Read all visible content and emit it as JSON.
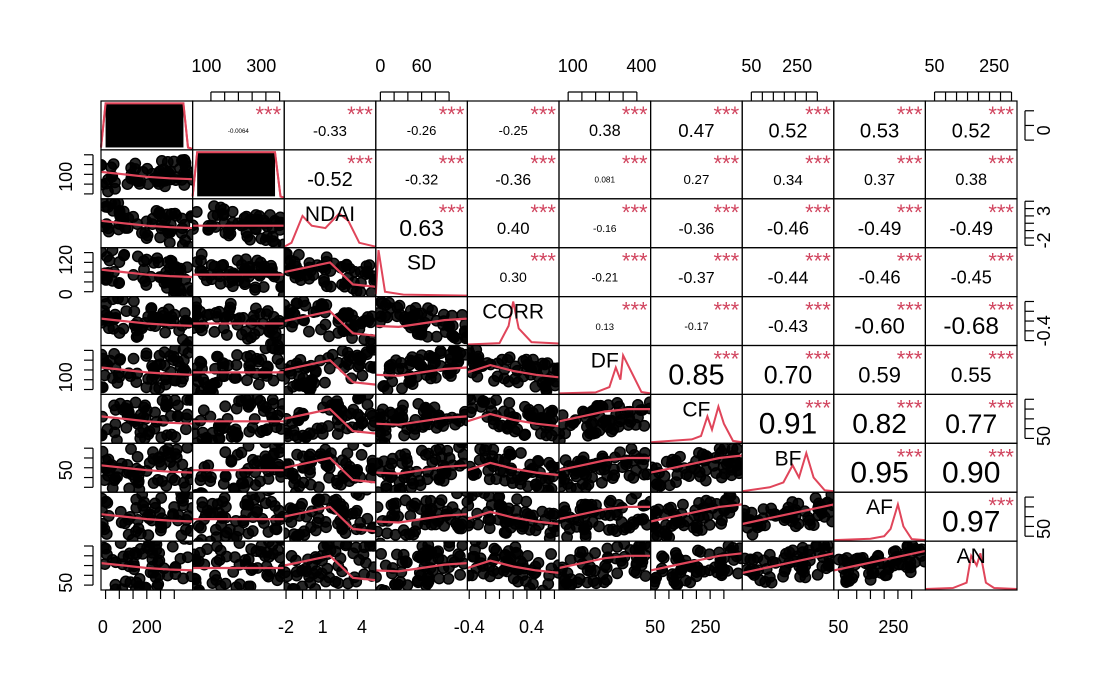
{
  "chart_data": {
    "type": "scatter-matrix",
    "variables": [
      "",
      "",
      "NDAI",
      "SD",
      "CORR",
      "DF",
      "CF",
      "BF",
      "AF",
      "AN"
    ],
    "significance_marker": "***",
    "correlations": [
      {
        "row": 0,
        "col": 1,
        "label": "-0.0064"
      },
      {
        "row": 0,
        "col": 2,
        "label": "-0.33"
      },
      {
        "row": 0,
        "col": 3,
        "label": "-0.26"
      },
      {
        "row": 0,
        "col": 4,
        "label": "-0.25"
      },
      {
        "row": 0,
        "col": 5,
        "label": "0.38"
      },
      {
        "row": 0,
        "col": 6,
        "label": "0.47"
      },
      {
        "row": 0,
        "col": 7,
        "label": "0.52"
      },
      {
        "row": 0,
        "col": 8,
        "label": "0.53"
      },
      {
        "row": 0,
        "col": 9,
        "label": "0.52"
      },
      {
        "row": 1,
        "col": 2,
        "label": "-0.52"
      },
      {
        "row": 1,
        "col": 3,
        "label": "-0.32"
      },
      {
        "row": 1,
        "col": 4,
        "label": "-0.36"
      },
      {
        "row": 1,
        "col": 5,
        "label": "0.081"
      },
      {
        "row": 1,
        "col": 6,
        "label": "0.27"
      },
      {
        "row": 1,
        "col": 7,
        "label": "0.34"
      },
      {
        "row": 1,
        "col": 8,
        "label": "0.37"
      },
      {
        "row": 1,
        "col": 9,
        "label": "0.38"
      },
      {
        "row": 2,
        "col": 3,
        "label": "0.63"
      },
      {
        "row": 2,
        "col": 4,
        "label": "0.40"
      },
      {
        "row": 2,
        "col": 5,
        "label": "-0.16"
      },
      {
        "row": 2,
        "col": 6,
        "label": "-0.36"
      },
      {
        "row": 2,
        "col": 7,
        "label": "-0.46"
      },
      {
        "row": 2,
        "col": 8,
        "label": "-0.49"
      },
      {
        "row": 2,
        "col": 9,
        "label": "-0.49"
      },
      {
        "row": 3,
        "col": 4,
        "label": "0.30"
      },
      {
        "row": 3,
        "col": 5,
        "label": "-0.21"
      },
      {
        "row": 3,
        "col": 6,
        "label": "-0.37"
      },
      {
        "row": 3,
        "col": 7,
        "label": "-0.44"
      },
      {
        "row": 3,
        "col": 8,
        "label": "-0.46"
      },
      {
        "row": 3,
        "col": 9,
        "label": "-0.45"
      },
      {
        "row": 4,
        "col": 5,
        "label": "0.13"
      },
      {
        "row": 4,
        "col": 6,
        "label": "-0.17"
      },
      {
        "row": 4,
        "col": 7,
        "label": "-0.43"
      },
      {
        "row": 4,
        "col": 8,
        "label": "-0.60"
      },
      {
        "row": 4,
        "col": 9,
        "label": "-0.68"
      },
      {
        "row": 5,
        "col": 6,
        "label": "0.85"
      },
      {
        "row": 5,
        "col": 7,
        "label": "0.70"
      },
      {
        "row": 5,
        "col": 8,
        "label": "0.59"
      },
      {
        "row": 5,
        "col": 9,
        "label": "0.55"
      },
      {
        "row": 6,
        "col": 7,
        "label": "0.91"
      },
      {
        "row": 6,
        "col": 8,
        "label": "0.82"
      },
      {
        "row": 6,
        "col": 9,
        "label": "0.77"
      },
      {
        "row": 7,
        "col": 8,
        "label": "0.95"
      },
      {
        "row": 7,
        "col": 9,
        "label": "0.90"
      },
      {
        "row": 8,
        "col": 9,
        "label": "0.97"
      }
    ],
    "top_axis_labels": [
      {
        "col": 1,
        "labels": [
          "100",
          "300"
        ]
      },
      {
        "col": 3,
        "labels": [
          "0",
          "60"
        ]
      },
      {
        "col": 5,
        "labels": [
          "100",
          "400"
        ]
      },
      {
        "col": 7,
        "labels": [
          "50",
          "250"
        ]
      },
      {
        "col": 9,
        "labels": [
          "50",
          "250"
        ]
      }
    ],
    "bottom_axis_labels": [
      {
        "col": 0,
        "labels": [
          "0",
          "200"
        ]
      },
      {
        "col": 2,
        "labels": [
          "-2",
          "1",
          "4"
        ]
      },
      {
        "col": 4,
        "labels": [
          "-0.4",
          "0.4"
        ]
      },
      {
        "col": 6,
        "labels": [
          "50",
          "250"
        ]
      },
      {
        "col": 8,
        "labels": [
          "50",
          "250"
        ]
      }
    ],
    "left_axis_labels": [
      {
        "row": 1,
        "labels": [
          "100"
        ]
      },
      {
        "row": 3,
        "labels": [
          "0",
          "120"
        ]
      },
      {
        "row": 5,
        "labels": [
          "100"
        ]
      },
      {
        "row": 7,
        "labels": [
          "50"
        ]
      },
      {
        "row": 9,
        "labels": [
          "50"
        ]
      }
    ],
    "right_axis_labels": [
      {
        "row": 0,
        "labels": [
          "0"
        ]
      },
      {
        "row": 2,
        "labels": [
          "-2",
          "3"
        ]
      },
      {
        "row": 4,
        "labels": [
          "-0.4"
        ]
      },
      {
        "row": 6,
        "labels": [
          "50"
        ]
      },
      {
        "row": 8,
        "labels": [
          "50"
        ]
      }
    ],
    "colors": {
      "stars": "#d1455f",
      "smoother": "#e0455a",
      "points": "#000000",
      "frame": "#000000"
    }
  }
}
